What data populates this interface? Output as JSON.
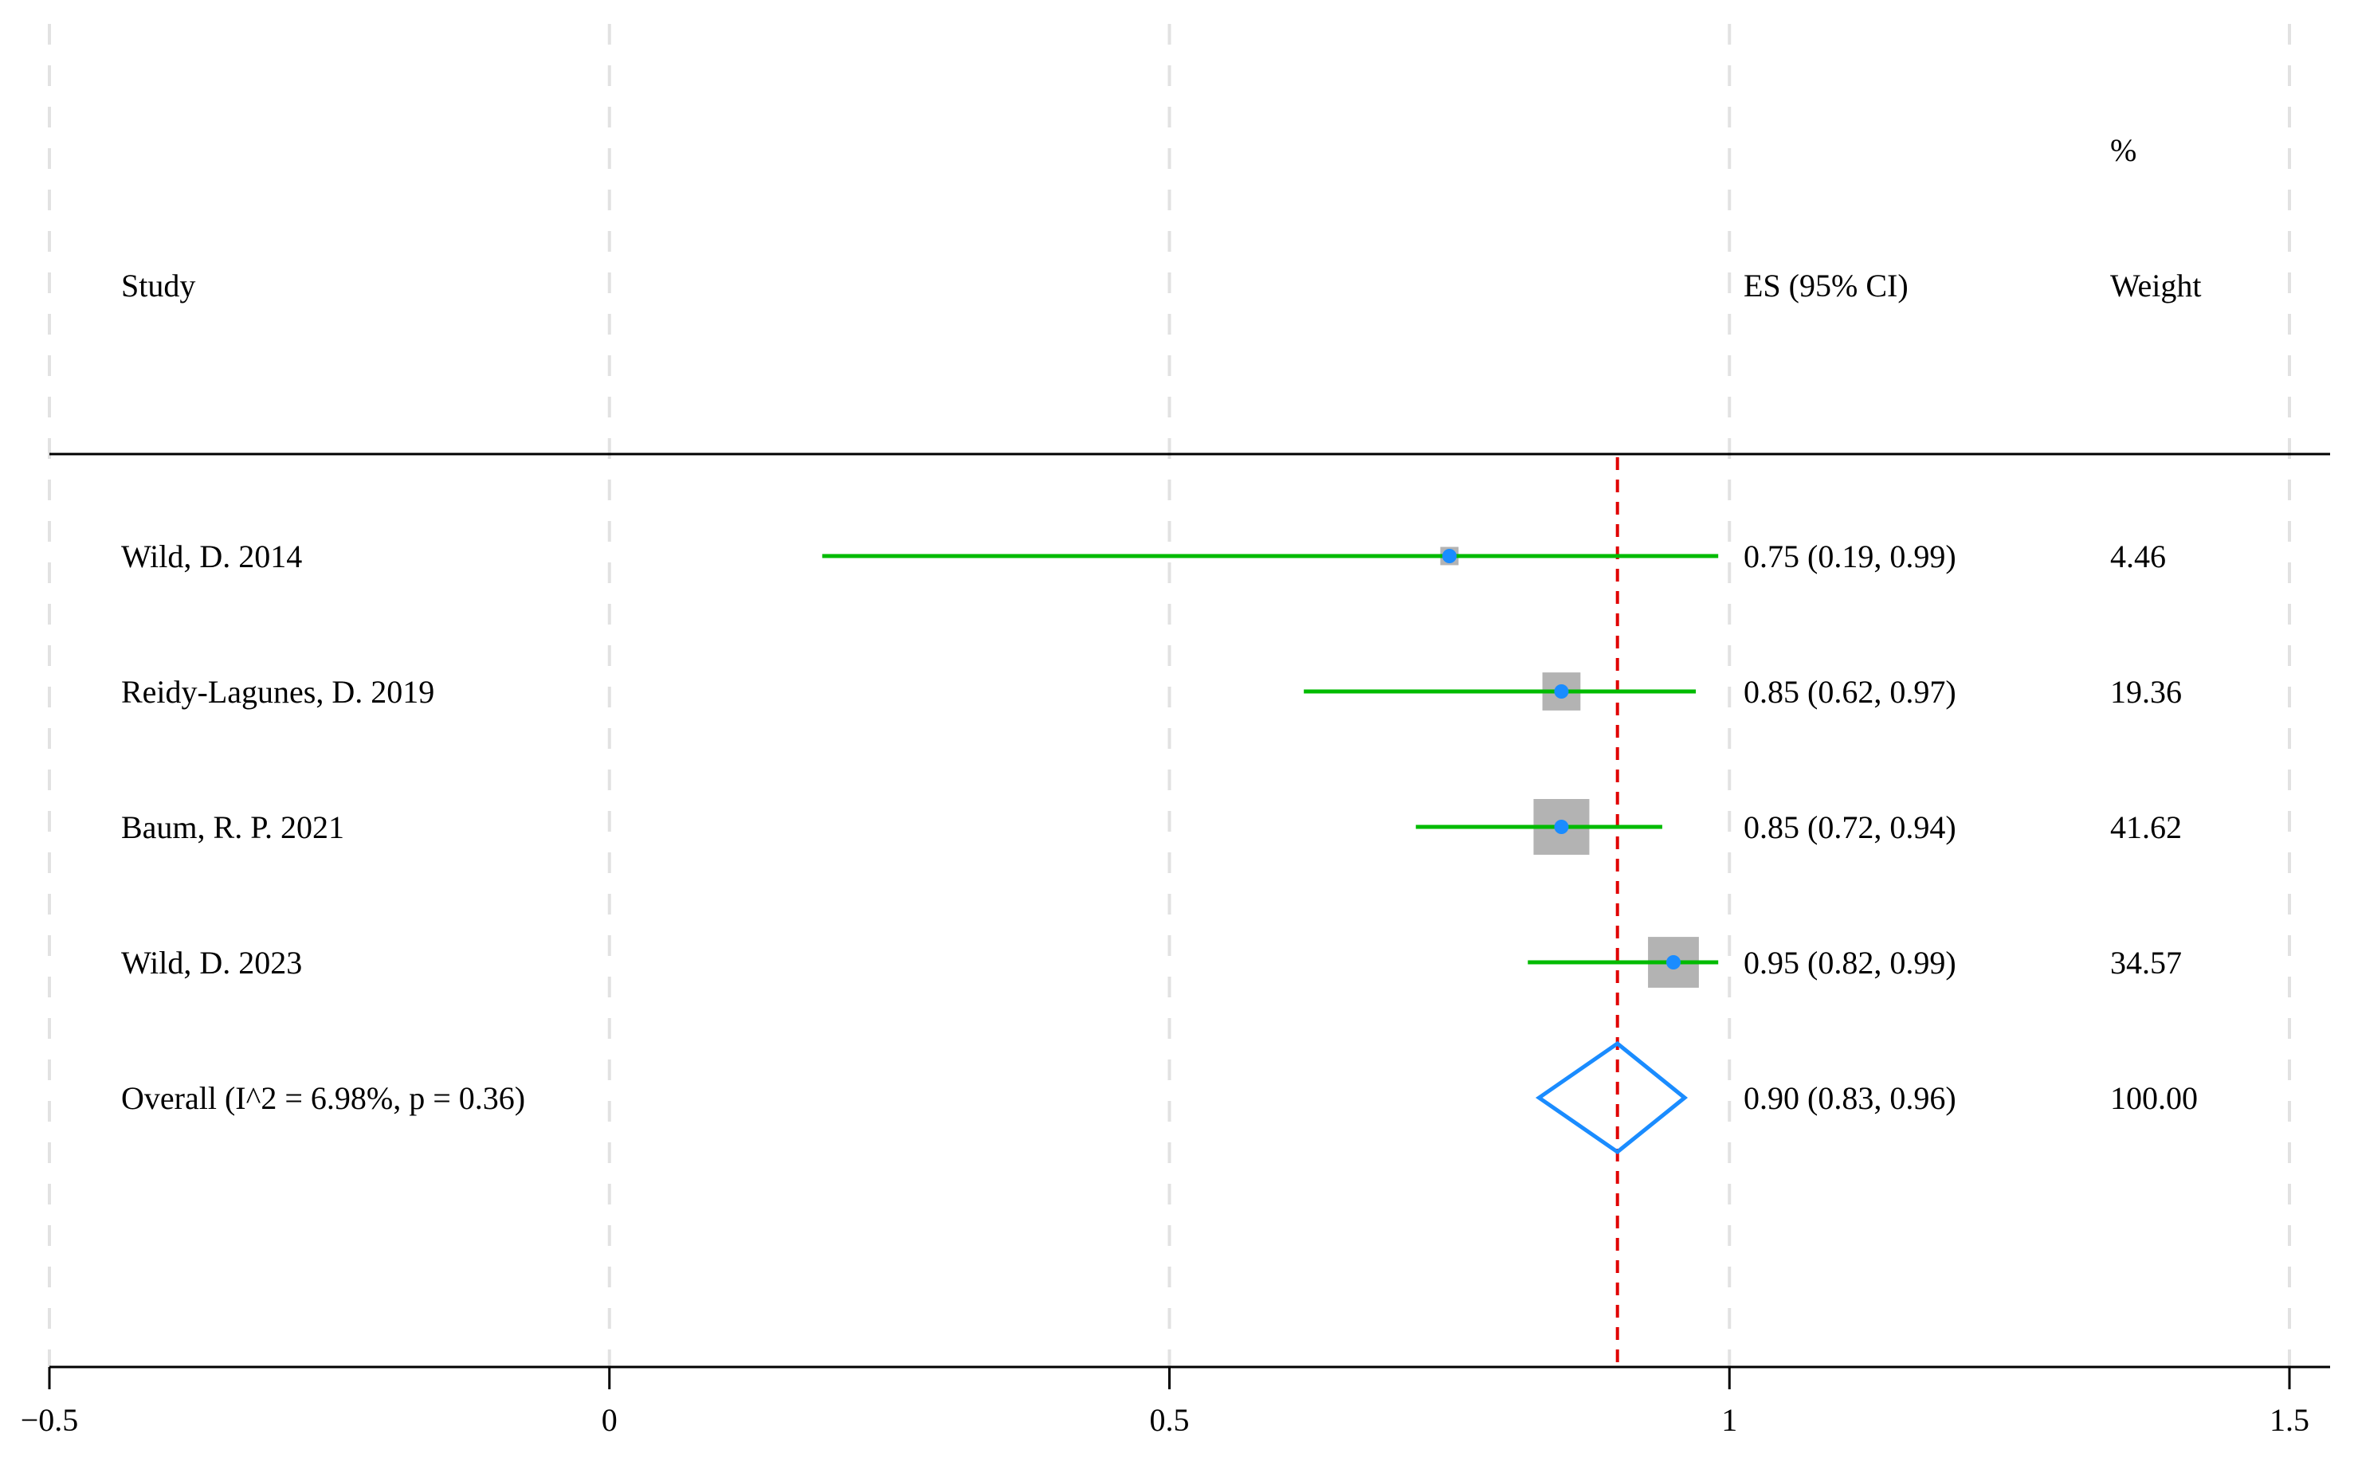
{
  "chart_data": {
    "type": "forest",
    "headers": {
      "study": "Study",
      "es": "ES (95% CI)",
      "weight_top": "%",
      "weight": "Weight"
    },
    "xlim": [
      -0.5,
      1.5
    ],
    "xticks": [
      {
        "value": -0.5,
        "label": "−0.5"
      },
      {
        "value": 0,
        "label": "0"
      },
      {
        "value": 0.5,
        "label": "0.5"
      },
      {
        "value": 1,
        "label": "1"
      },
      {
        "value": 1.5,
        "label": "1.5"
      }
    ],
    "grid": true,
    "reference_line": 0.9,
    "studies": [
      {
        "label": "Wild, D. 2014",
        "es": 0.75,
        "lo": 0.19,
        "hi": 0.99,
        "es_text": "0.75 (0.19, 0.99)",
        "weight": 4.46,
        "weight_text": "4.46"
      },
      {
        "label": "Reidy-Lagunes, D. 2019",
        "es": 0.85,
        "lo": 0.62,
        "hi": 0.97,
        "es_text": "0.85 (0.62, 0.97)",
        "weight": 19.36,
        "weight_text": "19.36"
      },
      {
        "label": "Baum, R. P. 2021",
        "es": 0.85,
        "lo": 0.72,
        "hi": 0.94,
        "es_text": "0.85 (0.72, 0.94)",
        "weight": 41.62,
        "weight_text": "41.62"
      },
      {
        "label": "Wild, D. 2023",
        "es": 0.95,
        "lo": 0.82,
        "hi": 0.99,
        "es_text": "0.95 (0.82, 0.99)",
        "weight": 34.57,
        "weight_text": "34.57"
      }
    ],
    "overall": {
      "label": "Overall  (I^2 = 6.98%, p = 0.36)",
      "es": 0.9,
      "lo": 0.83,
      "hi": 0.96,
      "es_text": "0.90 (0.83, 0.96)",
      "weight_text": "100.00"
    },
    "colors": {
      "ci_line": "#00bb00",
      "point": "#1a8cff",
      "weight_box": "#b3b3b3",
      "diamond": "#1a8cff",
      "reference_line": "#e00000",
      "grid": "#e2e2e2",
      "axis": "#000000"
    }
  }
}
